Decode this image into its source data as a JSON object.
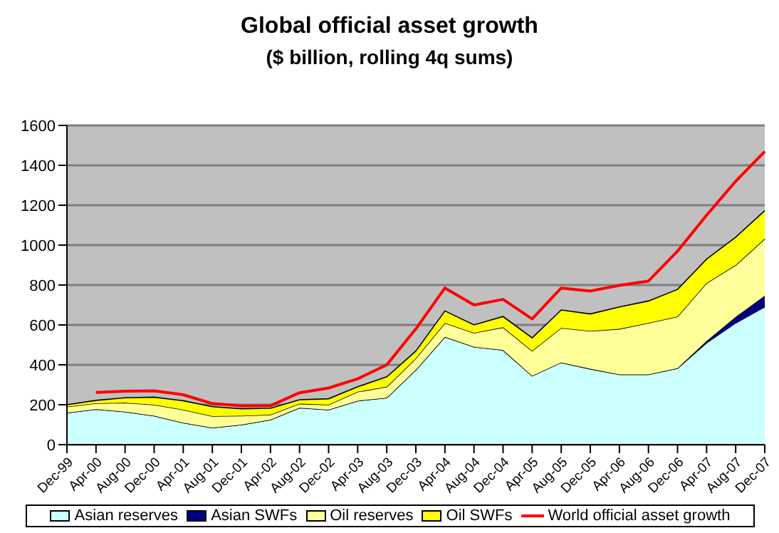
{
  "chart_data": {
    "type": "area",
    "title": "Global official asset growth",
    "subtitle": "($ billion, rolling 4q sums)",
    "categories": [
      "Dec-99",
      "Apr-00",
      "Aug-00",
      "Dec-00",
      "Apr-01",
      "Aug-01",
      "Dec-01",
      "Apr-02",
      "Aug-02",
      "Dec-02",
      "Apr-03",
      "Aug-03",
      "Dec-03",
      "Apr-04",
      "Aug-04",
      "Dec-04",
      "Apr-05",
      "Aug-05",
      "Dec-05",
      "Apr-06",
      "Aug-06",
      "Dec-06",
      "Apr-07",
      "Aug-07",
      "Dec-07"
    ],
    "stacked": true,
    "ylim": [
      0,
      1600
    ],
    "yticks": [
      0,
      200,
      400,
      600,
      800,
      1000,
      1200,
      1400,
      1600
    ],
    "grid": "y",
    "legend": "bottom",
    "series": [
      {
        "name": "Asian reserves",
        "color": "#ccffff",
        "values": [
          160,
          178,
          165,
          145,
          110,
          85,
          100,
          125,
          185,
          175,
          220,
          235,
          375,
          540,
          490,
          474,
          345,
          412,
          380,
          352,
          352,
          383,
          510,
          610,
          691
        ]
      },
      {
        "name": "Asian SWFs",
        "color": "#000080",
        "values": [
          0,
          0,
          0,
          0,
          0,
          0,
          0,
          0,
          0,
          0,
          0,
          0,
          0,
          0,
          0,
          0,
          0,
          0,
          0,
          0,
          0,
          0,
          10,
          30,
          55
        ]
      },
      {
        "name": "Oil reserves",
        "color": "#ffff99",
        "values": [
          30,
          29,
          45,
          55,
          65,
          58,
          45,
          25,
          20,
          25,
          45,
          55,
          57,
          70,
          70,
          114,
          125,
          173,
          190,
          228,
          258,
          259,
          290,
          260,
          286
        ]
      },
      {
        "name": "Oil SWFs",
        "color": "#ffff00",
        "values": [
          10,
          15,
          25,
          38,
          45,
          47,
          35,
          32,
          20,
          30,
          25,
          50,
          37,
          60,
          40,
          54,
          65,
          90,
          85,
          110,
          110,
          136,
          120,
          140,
          141
        ]
      },
      {
        "name": "World official asset growth",
        "type": "line",
        "color": "#ff0000",
        "values": [
          null,
          262,
          268,
          270,
          250,
          206,
          195,
          195,
          260,
          284,
          330,
          400,
          580,
          785,
          700,
          728,
          630,
          785,
          770,
          798,
          820,
          970,
          1150,
          1320,
          1469
        ]
      }
    ]
  }
}
